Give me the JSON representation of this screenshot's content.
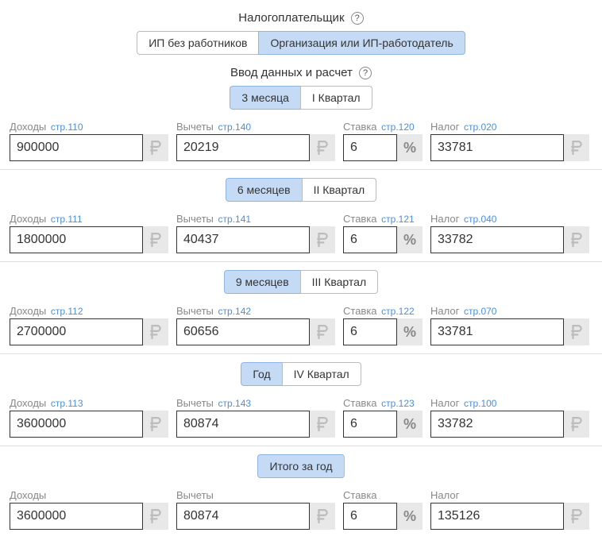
{
  "taxpayer": {
    "title": "Налогоплательщик",
    "options": {
      "ind": "ИП без работников",
      "org": "Организация или ИП-работодатель"
    },
    "active": "org"
  },
  "dataEntry": {
    "title": "Ввод данных и расчет"
  },
  "periods": [
    {
      "toggle": {
        "a": "3 месяца",
        "b": "I Квартал",
        "active": "a"
      },
      "income": {
        "label": "Доходы",
        "ref": "стр.110",
        "value": "900000"
      },
      "deduction": {
        "label": "Вычеты",
        "ref": "стр.140",
        "value": "20219"
      },
      "rate": {
        "label": "Ставка",
        "ref": "стр.120",
        "value": "6"
      },
      "tax": {
        "label": "Налог",
        "ref": "стр.020",
        "value": "33781"
      }
    },
    {
      "toggle": {
        "a": "6 месяцев",
        "b": "II Квартал",
        "active": "a"
      },
      "income": {
        "label": "Доходы",
        "ref": "стр.111",
        "value": "1800000"
      },
      "deduction": {
        "label": "Вычеты",
        "ref": "стр.141",
        "value": "40437"
      },
      "rate": {
        "label": "Ставка",
        "ref": "стр.121",
        "value": "6"
      },
      "tax": {
        "label": "Налог",
        "ref": "стр.040",
        "value": "33782"
      }
    },
    {
      "toggle": {
        "a": "9 месяцев",
        "b": "III Квартал",
        "active": "a"
      },
      "income": {
        "label": "Доходы",
        "ref": "стр.112",
        "value": "2700000"
      },
      "deduction": {
        "label": "Вычеты",
        "ref": "стр.142",
        "value": "60656"
      },
      "rate": {
        "label": "Ставка",
        "ref": "стр.122",
        "value": "6"
      },
      "tax": {
        "label": "Налог",
        "ref": "стр.070",
        "value": "33781"
      }
    },
    {
      "toggle": {
        "a": "Год",
        "b": "IV Квартал",
        "active": "a"
      },
      "income": {
        "label": "Доходы",
        "ref": "стр.113",
        "value": "3600000"
      },
      "deduction": {
        "label": "Вычеты",
        "ref": "стр.143",
        "value": "80874"
      },
      "rate": {
        "label": "Ставка",
        "ref": "стр.123",
        "value": "6"
      },
      "tax": {
        "label": "Налог",
        "ref": "стр.100",
        "value": "33782"
      }
    }
  ],
  "total": {
    "toggle": {
      "label": "Итого за год"
    },
    "income": {
      "label": "Доходы",
      "value": "3600000"
    },
    "deduction": {
      "label": "Вычеты",
      "value": "80874"
    },
    "rate": {
      "label": "Ставка",
      "value": "6"
    },
    "tax": {
      "label": "Налог",
      "value": "135126"
    }
  }
}
